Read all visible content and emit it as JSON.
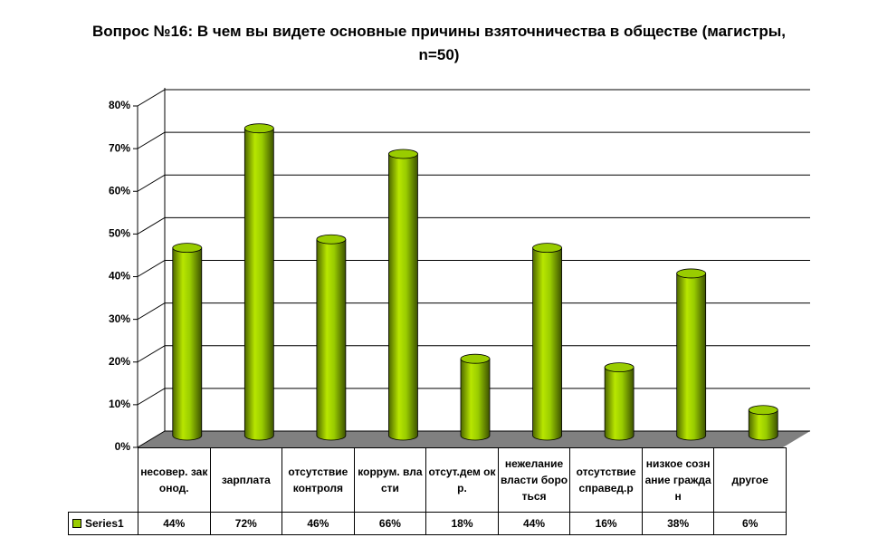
{
  "chart_data": {
    "type": "bar",
    "title": "Вопрос №16: В чем вы видете основные причины взяточничества в обществе (магистры, n=50)",
    "categories": [
      "несовер. законод.",
      "зарплата",
      "отсутствие контроля",
      "коррум. власти",
      "отсут.дем окр.",
      "нежелание власти бороться",
      "отсутствие справед.р",
      "низкое сознание граждан",
      "другое"
    ],
    "series": [
      {
        "name": "Series1",
        "color": "#99cc00",
        "values": [
          44,
          72,
          46,
          66,
          18,
          44,
          16,
          38,
          6
        ],
        "value_labels": [
          "44%",
          "72%",
          "46%",
          "66%",
          "18%",
          "44%",
          "16%",
          "38%",
          "6%"
        ]
      }
    ],
    "ylim": [
      0,
      80
    ],
    "yticks": [
      {
        "value": 0,
        "label": "0%"
      },
      {
        "value": 10,
        "label": "10%"
      },
      {
        "value": 20,
        "label": "20%"
      },
      {
        "value": 30,
        "label": "30%"
      },
      {
        "value": 40,
        "label": "40%"
      },
      {
        "value": 50,
        "label": "50%"
      },
      {
        "value": 60,
        "label": "60%"
      },
      {
        "value": 70,
        "label": "70%"
      },
      {
        "value": 80,
        "label": "80%"
      }
    ],
    "grid": true
  }
}
